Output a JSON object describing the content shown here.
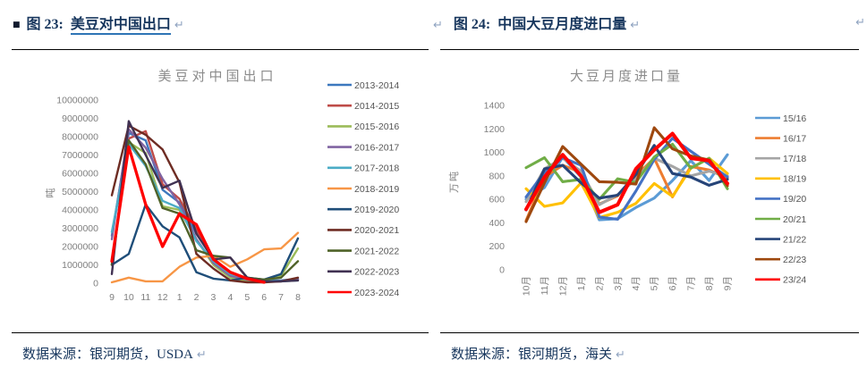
{
  "figures": {
    "left": {
      "bullet": "■",
      "label": "图 23:",
      "title": "美豆对中国出口",
      "source": "数据来源：银河期货，USDA"
    },
    "right": {
      "label": "图 24:",
      "title": "中国大豆月度进口量",
      "source": "数据来源：银河期货，海关"
    },
    "pilcrow": "↵"
  },
  "colors": {
    "heading_navy": "#17365D",
    "link_underline": "#2E74B5",
    "pilcrow_gray": "#8FA3C0",
    "chart_text_gray": "#7f7f7f"
  },
  "chart_data": [
    {
      "type": "line",
      "title": "美豆对中国出口",
      "xlabel": "",
      "ylabel": "吨",
      "x_labels": [
        "9",
        "10",
        "11",
        "12",
        "1",
        "2",
        "3",
        "4",
        "5",
        "6",
        "7",
        "8"
      ],
      "ylim": [
        0,
        10000000
      ],
      "yticks": [
        0,
        1000000,
        2000000,
        3000000,
        4000000,
        5000000,
        6000000,
        7000000,
        8000000,
        9000000,
        10000000
      ],
      "ytick_labels": [
        "0",
        "1000000",
        "2000000",
        "3000000",
        "4000000",
        "5000000",
        "6000000",
        "7000000",
        "8000000",
        "9000000",
        "10000000"
      ],
      "grid": false,
      "legend_position": "right",
      "series": [
        {
          "name": "2013-2014",
          "color": "#3C78BE",
          "values": [
            2600000,
            8200000,
            7800000,
            5100000,
            4400000,
            2700000,
            1400000,
            500000,
            250000,
            150000,
            150000,
            250000
          ]
        },
        {
          "name": "2014-2015",
          "color": "#BE4B48",
          "values": [
            1050000,
            7900000,
            8300000,
            5400000,
            4600000,
            2900000,
            1200000,
            400000,
            200000,
            100000,
            100000,
            200000
          ]
        },
        {
          "name": "2015-2016",
          "color": "#9BBB59",
          "values": [
            1000000,
            7700000,
            7100000,
            4200000,
            4000000,
            2400000,
            1000000,
            300000,
            100000,
            100000,
            400000,
            1900000
          ]
        },
        {
          "name": "2016-2017",
          "color": "#8064A2",
          "values": [
            2400000,
            8400000,
            7400000,
            5700000,
            4300000,
            2400000,
            1100000,
            400000,
            200000,
            100000,
            100000,
            200000
          ]
        },
        {
          "name": "2017-2018",
          "color": "#4BACC6",
          "values": [
            2800000,
            7600000,
            6400000,
            4500000,
            4100000,
            2300000,
            1200000,
            500000,
            300000,
            150000,
            100000,
            150000
          ]
        },
        {
          "name": "2018-2019",
          "color": "#F79646",
          "values": [
            50000,
            300000,
            100000,
            100000,
            900000,
            1400000,
            1500000,
            900000,
            1300000,
            1850000,
            1900000,
            2750000
          ]
        },
        {
          "name": "2019-2020",
          "color": "#1F4E79",
          "values": [
            1000000,
            1600000,
            4300000,
            3100000,
            2500000,
            600000,
            250000,
            150000,
            300000,
            200000,
            500000,
            2450000
          ]
        },
        {
          "name": "2020-2021",
          "color": "#6E2C23",
          "values": [
            4800000,
            8600000,
            8100000,
            7300000,
            5500000,
            1600000,
            800000,
            150000,
            50000,
            50000,
            100000,
            300000
          ]
        },
        {
          "name": "2021-2022",
          "color": "#4F6228",
          "values": [
            1000000,
            7800000,
            6500000,
            4100000,
            3800000,
            1800000,
            1500000,
            1400000,
            300000,
            200000,
            300000,
            1200000
          ]
        },
        {
          "name": "2022-2023",
          "color": "#403152",
          "values": [
            500000,
            8850000,
            7000000,
            5200000,
            5600000,
            2700000,
            1300000,
            1400000,
            300000,
            100000,
            100000,
            150000
          ]
        },
        {
          "name": "2023-2024",
          "color": "#FF0000",
          "emphasis": true,
          "values": [
            1200000,
            7450000,
            4300000,
            2000000,
            3800000,
            3200000,
            1300000,
            600000,
            250000,
            50000,
            null,
            null
          ]
        }
      ]
    },
    {
      "type": "line",
      "title": "大豆月度进口量",
      "xlabel": "",
      "ylabel": "万吨",
      "x_labels": [
        "10月",
        "11月",
        "12月",
        "1月",
        "2月",
        "3月",
        "4月",
        "5月",
        "6月",
        "7月",
        "8月",
        "9月"
      ],
      "ylim": [
        0,
        1400
      ],
      "yticks": [
        0,
        200,
        400,
        600,
        800,
        1000,
        1200,
        1400
      ],
      "ytick_labels": [
        "0",
        "200",
        "400",
        "600",
        "800",
        "1000",
        "1200",
        "1400"
      ],
      "grid": false,
      "legend_position": "right",
      "series": [
        {
          "name": "15/16",
          "color": "#5B9BD5",
          "values": [
            600,
            700,
            960,
            790,
            425,
            435,
            530,
            610,
            760,
            930,
            760,
            980
          ]
        },
        {
          "name": "16/17",
          "color": "#ED7D31",
          "values": [
            420,
            790,
            890,
            830,
            560,
            630,
            800,
            950,
            620,
            880,
            850,
            780
          ]
        },
        {
          "name": "17/18",
          "color": "#A5A5A5",
          "values": [
            580,
            860,
            950,
            840,
            555,
            640,
            770,
            950,
            880,
            800,
            840,
            800
          ]
        },
        {
          "name": "18/19",
          "color": "#FFC000",
          "values": [
            690,
            540,
            570,
            740,
            445,
            490,
            565,
            735,
            625,
            865,
            950,
            820
          ]
        },
        {
          "name": "19/20",
          "color": "#4472C4",
          "values": [
            620,
            830,
            955,
            890,
            450,
            430,
            670,
            940,
            1120,
            1010,
            900,
            790
          ]
        },
        {
          "name": "20/21",
          "color": "#70AD47",
          "values": [
            870,
            955,
            750,
            770,
            600,
            775,
            745,
            960,
            1070,
            865,
            950,
            690
          ]
        },
        {
          "name": "21/22",
          "color": "#264478",
          "values": [
            510,
            860,
            890,
            740,
            610,
            635,
            810,
            1060,
            820,
            790,
            720,
            770
          ]
        },
        {
          "name": "22/23",
          "color": "#9E480E",
          "values": [
            410,
            740,
            1050,
            900,
            750,
            745,
            730,
            1210,
            1030,
            970,
            935,
            715
          ]
        },
        {
          "name": "23/24",
          "color": "#FF0000",
          "emphasis": true,
          "values": [
            515,
            790,
            980,
            800,
            490,
            555,
            860,
            1020,
            1160,
            950,
            930,
            735
          ]
        }
      ]
    }
  ]
}
